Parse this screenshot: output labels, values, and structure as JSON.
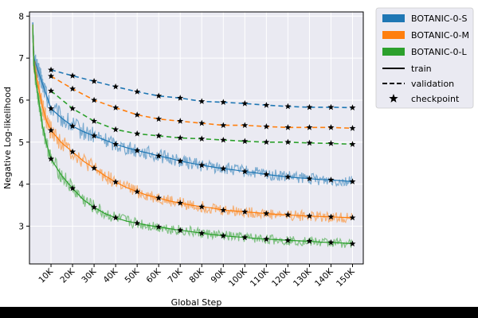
{
  "chart_data": {
    "type": "line",
    "title": "",
    "xlabel": "Global Step",
    "ylabel": "Negative Log-likelihood",
    "xlim": [
      0,
      155000
    ],
    "ylim": [
      2.1,
      8.1
    ],
    "grid": true,
    "legend_position": "outside-right-top",
    "x_ticks": [
      10000,
      20000,
      30000,
      40000,
      50000,
      60000,
      70000,
      80000,
      90000,
      100000,
      110000,
      120000,
      130000,
      140000,
      150000
    ],
    "x_tick_labels": [
      "10K",
      "20K",
      "30K",
      "40K",
      "50K",
      "60K",
      "70K",
      "80K",
      "90K",
      "100K",
      "110K",
      "120K",
      "130K",
      "140K",
      "150K"
    ],
    "y_ticks": [
      3,
      4,
      5,
      6,
      7,
      8
    ],
    "y_tick_labels": [
      "3",
      "4",
      "5",
      "6",
      "7",
      "8"
    ],
    "checkpoint_steps": [
      10000,
      20000,
      30000,
      40000,
      50000,
      60000,
      70000,
      80000,
      90000,
      100000,
      110000,
      120000,
      130000,
      140000,
      150000
    ],
    "train_x": [
      1500,
      2000,
      3000,
      4000,
      5000,
      6000,
      8000,
      10000,
      15000,
      20000,
      25000,
      30000,
      35000,
      40000,
      45000,
      50000,
      55000,
      60000,
      65000,
      70000,
      75000,
      80000,
      85000,
      90000,
      95000,
      100000,
      105000,
      110000,
      115000,
      120000,
      125000,
      130000,
      135000,
      140000,
      145000,
      150000
    ],
    "series": [
      {
        "name": "BOTANIC-0-S",
        "color": "#1f77b4",
        "train": [
          7.85,
          7.0,
          6.85,
          6.7,
          6.55,
          6.4,
          6.1,
          5.8,
          5.57,
          5.38,
          5.25,
          5.15,
          5.05,
          4.95,
          4.87,
          4.8,
          4.74,
          4.67,
          4.62,
          4.55,
          4.5,
          4.45,
          4.41,
          4.37,
          4.34,
          4.3,
          4.27,
          4.23,
          4.2,
          4.17,
          4.15,
          4.13,
          4.11,
          4.1,
          4.08,
          4.06
        ],
        "train_spread": 0.12,
        "checkpoint_train": [
          5.8,
          5.38,
          5.15,
          4.95,
          4.8,
          4.67,
          4.55,
          4.45,
          4.37,
          4.3,
          4.23,
          4.17,
          4.13,
          4.1,
          4.06
        ],
        "checkpoint_validation": [
          6.72,
          6.58,
          6.45,
          6.32,
          6.2,
          6.1,
          6.05,
          5.97,
          5.95,
          5.92,
          5.88,
          5.85,
          5.83,
          5.83,
          5.82
        ]
      },
      {
        "name": "BOTANIC-0-M",
        "color": "#ff7f0e",
        "train": [
          7.8,
          6.9,
          6.6,
          6.35,
          6.1,
          5.85,
          5.5,
          5.28,
          4.98,
          4.77,
          4.55,
          4.38,
          4.2,
          4.05,
          3.92,
          3.82,
          3.73,
          3.67,
          3.6,
          3.55,
          3.5,
          3.46,
          3.43,
          3.38,
          3.36,
          3.34,
          3.32,
          3.3,
          3.28,
          3.27,
          3.25,
          3.24,
          3.23,
          3.22,
          3.21,
          3.2
        ],
        "train_spread": 0.11,
        "checkpoint_train": [
          5.28,
          4.77,
          4.38,
          4.05,
          3.82,
          3.67,
          3.55,
          3.46,
          3.38,
          3.34,
          3.3,
          3.27,
          3.24,
          3.22,
          3.2
        ],
        "checkpoint_validation": [
          6.57,
          6.27,
          6.0,
          5.82,
          5.65,
          5.55,
          5.5,
          5.45,
          5.4,
          5.4,
          5.37,
          5.35,
          5.35,
          5.35,
          5.33
        ]
      },
      {
        "name": "BOTANIC-0-L",
        "color": "#2ca02c",
        "train": [
          7.8,
          6.85,
          6.45,
          6.1,
          5.75,
          5.4,
          4.95,
          4.6,
          4.2,
          3.9,
          3.63,
          3.45,
          3.3,
          3.2,
          3.12,
          3.07,
          3.02,
          2.98,
          2.94,
          2.9,
          2.87,
          2.83,
          2.8,
          2.77,
          2.75,
          2.73,
          2.71,
          2.69,
          2.68,
          2.66,
          2.65,
          2.64,
          2.62,
          2.61,
          2.6,
          2.58
        ],
        "train_spread": 0.1,
        "checkpoint_train": [
          4.6,
          3.9,
          3.45,
          3.2,
          3.07,
          2.98,
          2.9,
          2.83,
          2.77,
          2.73,
          2.69,
          2.66,
          2.64,
          2.61,
          2.58
        ],
        "checkpoint_validation": [
          6.22,
          5.8,
          5.5,
          5.3,
          5.2,
          5.15,
          5.1,
          5.08,
          5.05,
          5.02,
          5.0,
          5.0,
          4.98,
          4.97,
          4.95
        ]
      }
    ],
    "legend": {
      "entries": [
        "BOTANIC-0-S",
        "BOTANIC-0-M",
        "BOTANIC-0-L",
        "train",
        "validation",
        "checkpoint"
      ]
    }
  }
}
